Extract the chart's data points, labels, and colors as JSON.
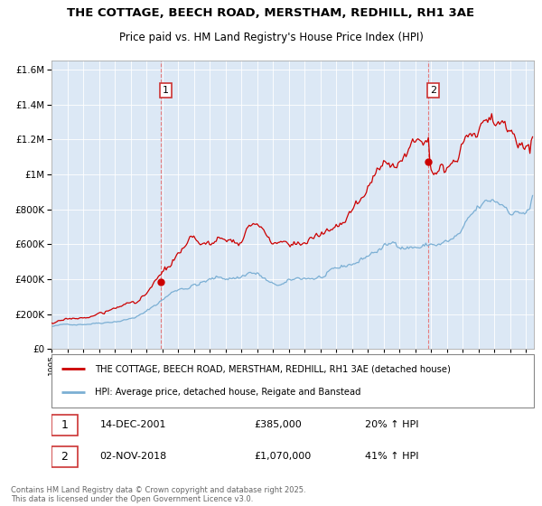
{
  "title": "THE COTTAGE, BEECH ROAD, MERSTHAM, REDHILL, RH1 3AE",
  "subtitle": "Price paid vs. HM Land Registry's House Price Index (HPI)",
  "sale1_date": "14-DEC-2001",
  "sale1_price": 385000,
  "sale1_label": "1",
  "sale1_hpi_text": "20% ↑ HPI",
  "sale2_date": "02-NOV-2018",
  "sale2_price": 1070000,
  "sale2_label": "2",
  "sale2_hpi_text": "41% ↑ HPI",
  "legend1": "THE COTTAGE, BEECH ROAD, MERSTHAM, REDHILL, RH1 3AE (detached house)",
  "legend2": "HPI: Average price, detached house, Reigate and Banstead",
  "footer": "Contains HM Land Registry data © Crown copyright and database right 2025.\nThis data is licensed under the Open Government Licence v3.0.",
  "red_color": "#cc0000",
  "blue_color": "#7bafd4",
  "chart_bg": "#dce8f5",
  "vline_color": "#e87070",
  "ylim_max": 1650000,
  "xlim_start": 1995.0,
  "xlim_end": 2025.5
}
